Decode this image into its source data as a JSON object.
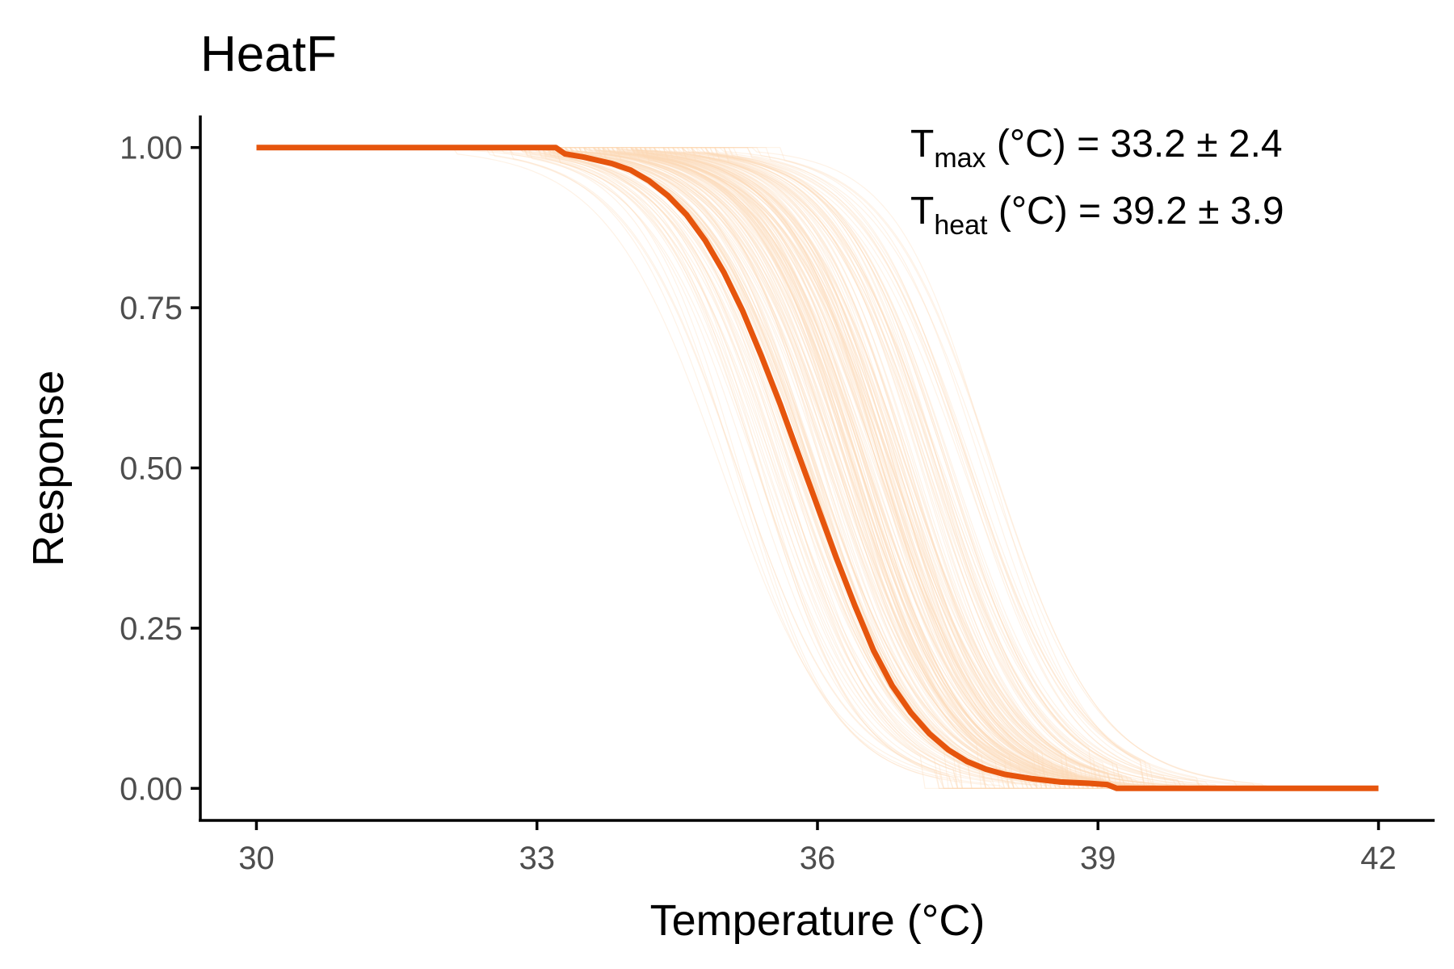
{
  "chart_data": {
    "type": "line",
    "title": "HeatF",
    "xlabel": "Temperature (°C)",
    "ylabel": "Response",
    "xlim": [
      29.4,
      42.6
    ],
    "ylim": [
      -0.05,
      1.05
    ],
    "x_ticks": [
      30,
      33,
      36,
      39,
      42
    ],
    "x_tick_labels": [
      "30",
      "33",
      "36",
      "39",
      "42"
    ],
    "y_ticks": [
      0,
      0.25,
      0.5,
      0.75,
      1
    ],
    "y_tick_labels": [
      "0.00",
      "0.25",
      "0.50",
      "0.75",
      "1.00"
    ],
    "grid": false,
    "annotations": [
      {
        "symbol": "T",
        "sub": "max",
        "text": " (°C) = 33.2 ± 2.4"
      },
      {
        "symbol": "T",
        "sub": "heat",
        "text": " (°C) = 39.2 ± 3.9"
      }
    ],
    "colors": {
      "fit": "#e6550d",
      "bootstrap": "#fdd9b8",
      "axis": "#000000",
      "tick_label": "#4d4d4d"
    },
    "series": [
      {
        "role": "fit",
        "x": [
          30.0,
          31.0,
          32.0,
          33.0,
          33.2,
          33.3,
          33.5,
          33.8,
          34.0,
          34.2,
          34.4,
          34.6,
          34.8,
          35.0,
          35.2,
          35.4,
          35.6,
          35.8,
          36.0,
          36.2,
          36.4,
          36.6,
          36.8,
          37.0,
          37.2,
          37.4,
          37.6,
          37.8,
          38.0,
          38.3,
          38.6,
          38.9,
          39.1,
          39.2,
          40.0,
          41.0,
          42.0
        ],
        "y": [
          1.0,
          1.0,
          1.0,
          1.0,
          1.0,
          0.99,
          0.985,
          0.975,
          0.965,
          0.948,
          0.925,
          0.895,
          0.855,
          0.805,
          0.745,
          0.675,
          0.6,
          0.52,
          0.44,
          0.36,
          0.285,
          0.215,
          0.16,
          0.118,
          0.085,
          0.06,
          0.042,
          0.03,
          0.022,
          0.015,
          0.01,
          0.008,
          0.006,
          0.0,
          0.0,
          0.0,
          0.0
        ]
      },
      {
        "role": "bootstrap",
        "count": 220,
        "model": "y = 1 / (1 + exp((x - x50) / s)), clamped to 1 below Tmax and to 0 above Theat",
        "x50_range": [
          34.8,
          38.0
        ],
        "s_range": [
          0.5,
          0.62
        ]
      }
    ]
  }
}
